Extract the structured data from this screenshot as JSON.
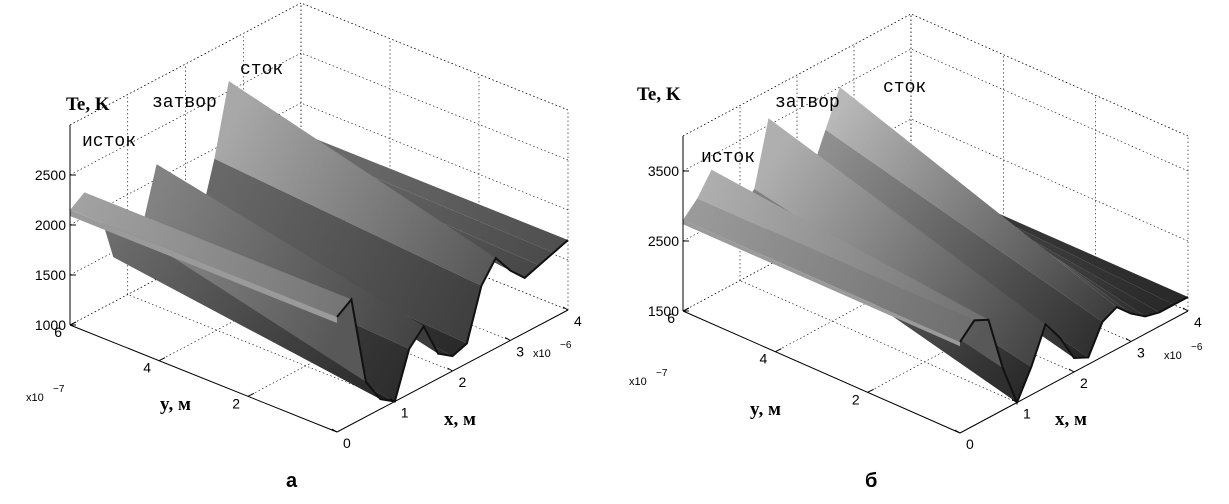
{
  "chart_data": [
    {
      "type": "surface",
      "caption": "а",
      "zlabel": "Te, K",
      "xlabel": "x, м",
      "ylabel": "y, м",
      "x_multiplier_base": "x10",
      "x_multiplier_exp": "−6",
      "y_multiplier_base": "x10",
      "y_multiplier_exp": "−7",
      "x_ticks": [
        "0",
        "1",
        "2",
        "3",
        "4"
      ],
      "y_ticks": [
        "6",
        "4",
        "2"
      ],
      "z_ticks": [
        "1000",
        "1500",
        "2000",
        "2500"
      ],
      "xlim": [
        0,
        4e-06
      ],
      "ylim": [
        0,
        6e-07
      ],
      "zlim": [
        1000,
        3000
      ],
      "grid": true,
      "region_labels": [
        "исток",
        "затвор",
        "сток"
      ],
      "x": [
        0,
        2.5e-07,
        5e-07,
        7.5e-07,
        1e-06,
        1.25e-06,
        1.5e-06,
        1.75e-06,
        2e-06,
        2.25e-06,
        2.5e-06,
        2.75e-06,
        3e-06,
        3.25e-06,
        3.5e-06,
        3.75e-06,
        4e-06
      ],
      "te_surface_profile": [
        2150,
        2250,
        2000,
        1450,
        1300,
        1600,
        2150,
        1900,
        1450,
        1350,
        1900,
        2600,
        2300,
        1850,
        1700,
        1700,
        1700
      ],
      "te_bottom_edge": [
        2150,
        2250,
        1350,
        1100,
        1000,
        1450,
        1600,
        1250,
        1150,
        1200,
        1700,
        1900,
        1700,
        1550,
        1600,
        1650,
        1700
      ]
    },
    {
      "type": "surface",
      "caption": "б",
      "zlabel": "Te, K",
      "xlabel": "x, м",
      "ylabel": "y, м",
      "x_multiplier_base": "x10",
      "x_multiplier_exp": "−6",
      "y_multiplier_base": "x10",
      "y_multiplier_exp": "−7",
      "x_ticks": [
        "0",
        "1",
        "2",
        "3",
        "4"
      ],
      "y_ticks": [
        "6",
        "4",
        "2"
      ],
      "z_ticks": [
        "1500",
        "2500",
        "3500"
      ],
      "xlim": [
        0,
        4e-06
      ],
      "ylim": [
        0,
        6e-07
      ],
      "zlim": [
        1500,
        4000
      ],
      "grid": true,
      "region_labels": [
        "исток",
        "затвор",
        "сток"
      ],
      "x": [
        0,
        2.5e-07,
        5e-07,
        7.5e-07,
        1e-06,
        1.25e-06,
        1.5e-06,
        1.75e-06,
        2e-06,
        2.25e-06,
        2.5e-06,
        2.75e-06,
        3e-06,
        3.25e-06,
        3.5e-06,
        3.75e-06,
        4e-06
      ],
      "te_surface_profile": [
        2800,
        3000,
        3300,
        3000,
        2500,
        2700,
        3600,
        3300,
        2700,
        2500,
        3000,
        3500,
        3100,
        2600,
        2200,
        1900,
        1700
      ],
      "te_bottom_edge": [
        2800,
        3000,
        2900,
        2100,
        1500,
        1900,
        2400,
        2100,
        1700,
        1600,
        2000,
        2100,
        1900,
        1750,
        1700,
        1700,
        1700
      ]
    }
  ]
}
